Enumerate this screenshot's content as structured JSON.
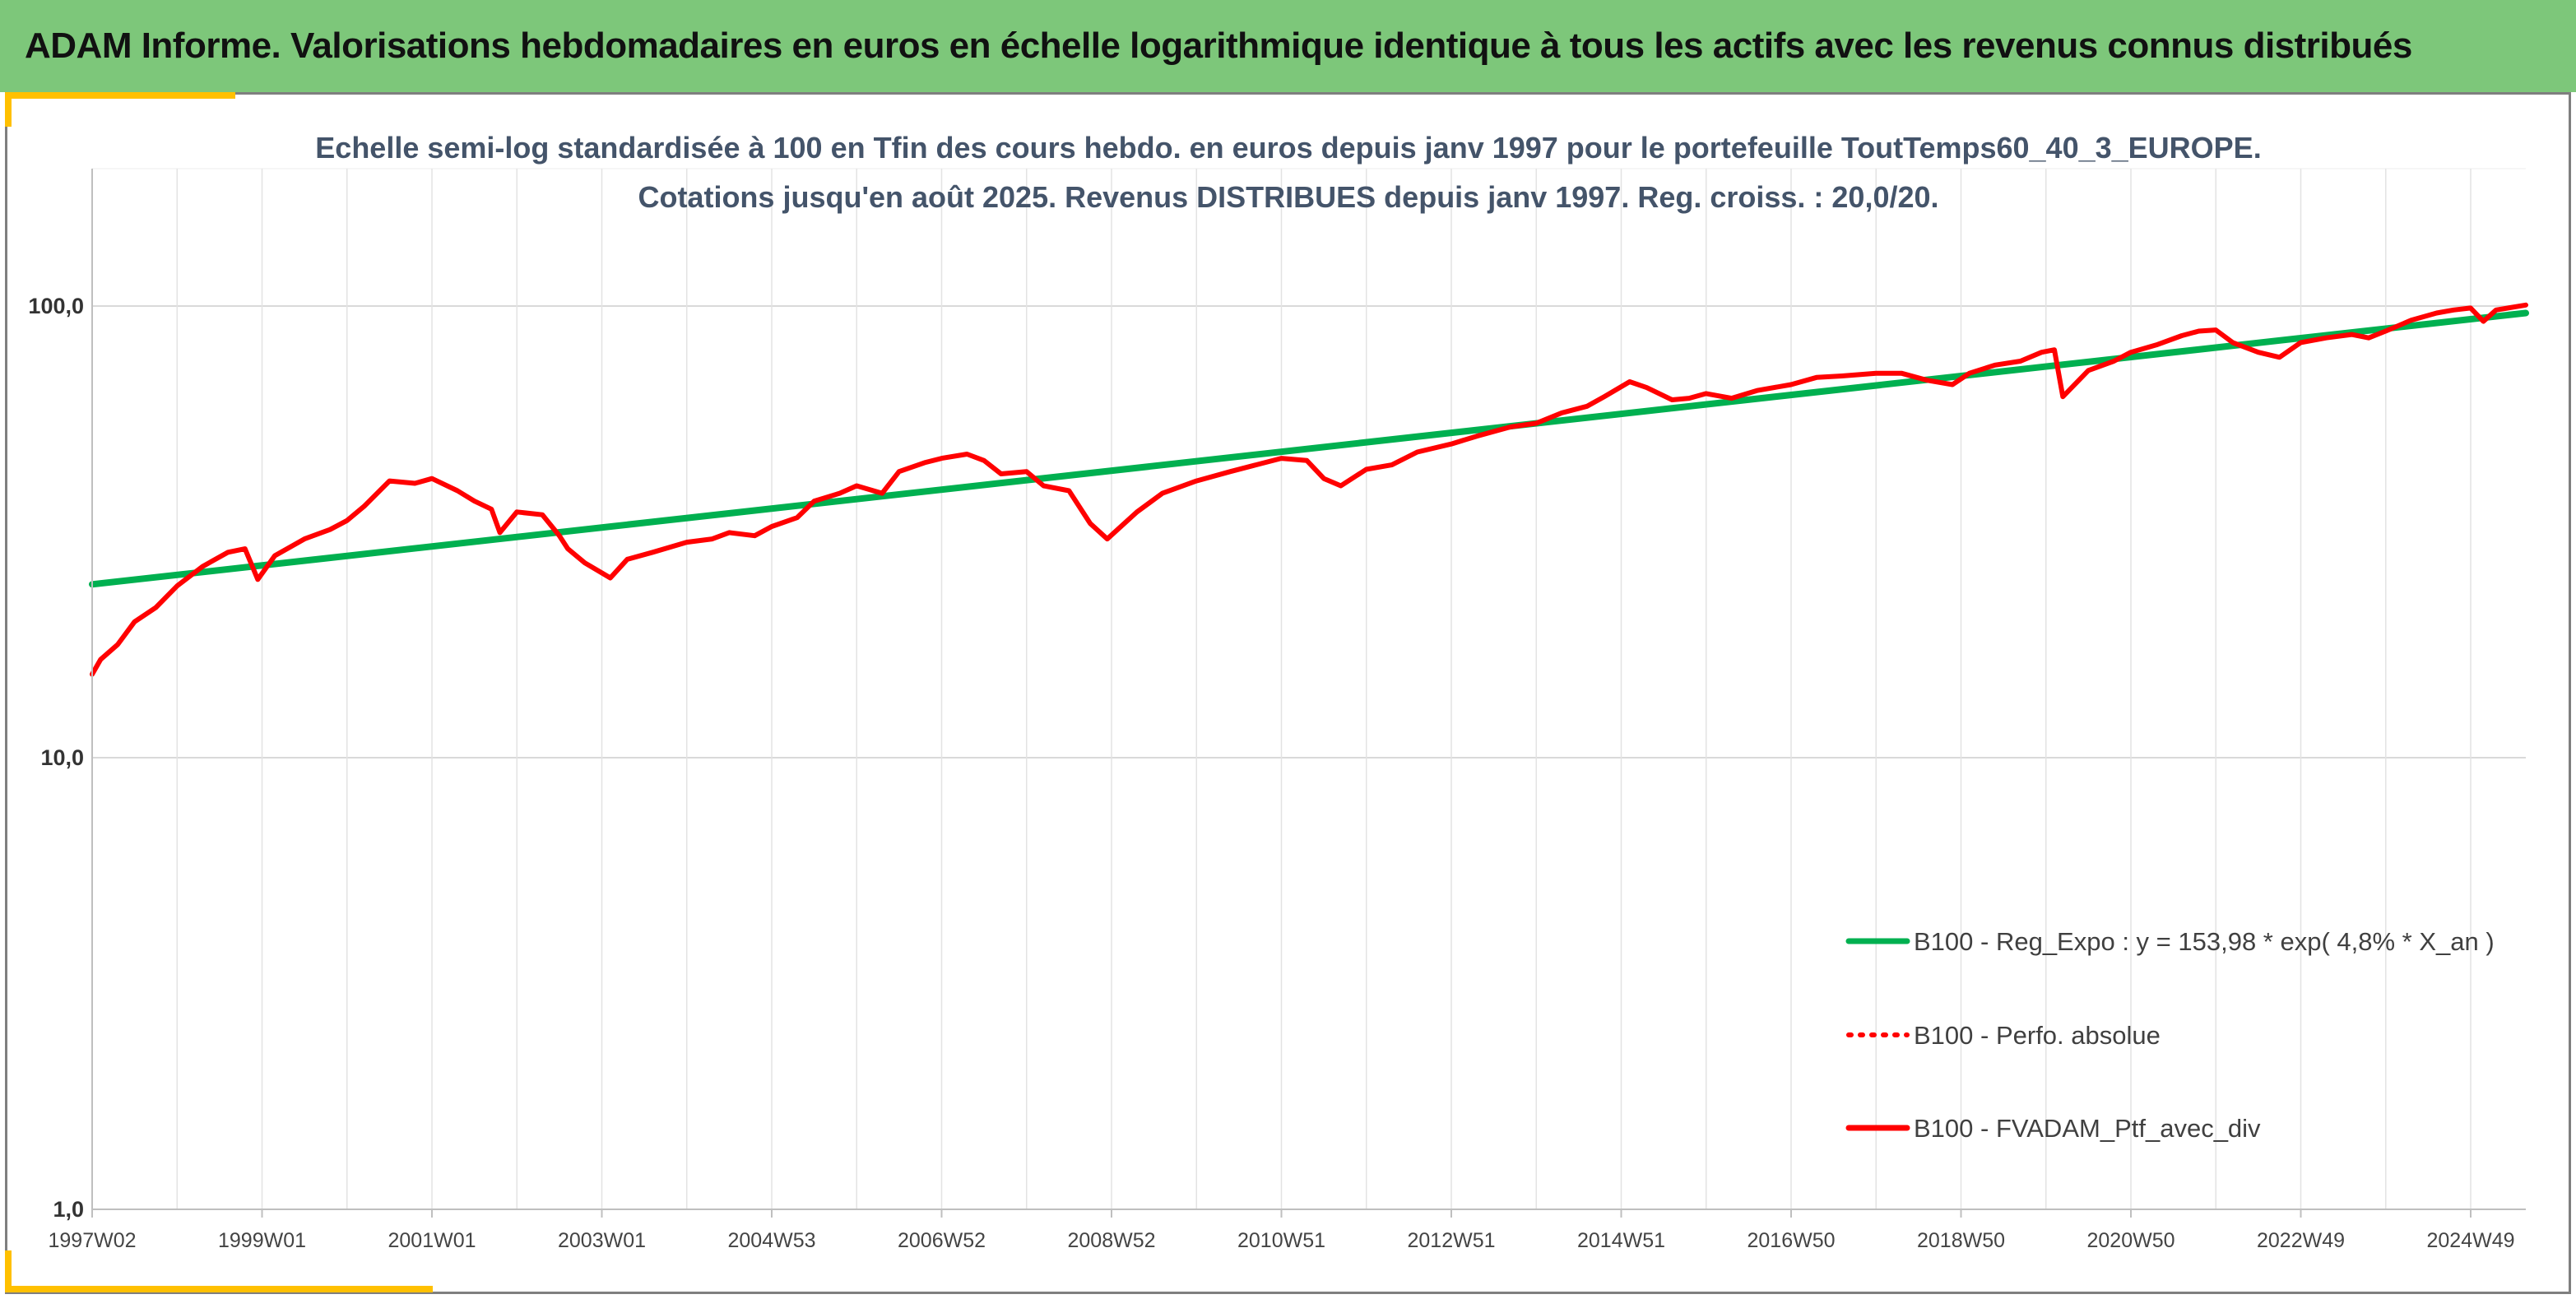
{
  "banner": {
    "title": "ADAM Informe. Valorisations hebdomadaires en euros en échelle logarithmique identique à tous les actifs avec les revenus connus distribués"
  },
  "colors": {
    "banner_bg": "#7dc77a",
    "accent_corner": "#ffc000",
    "regression_line": "#00b050",
    "portfolio_line": "#ff0000",
    "title_text": "#44546a"
  },
  "chart_data": {
    "type": "line",
    "title": [
      "Echelle semi-log standardisée à 100 en Tfin des cours hebdo. en euros depuis janv 1997 pour le portefeuille ToutTemps60_40_3_EUROPE.",
      "Cotations jusqu'en août 2025. Revenus DISTRIBUES depuis janv 1997. Reg. croiss. : 20,0/20."
    ],
    "y_scale": "log",
    "ylim": [
      1,
      200
    ],
    "y_ticks": [
      "100,0",
      "10,0",
      "1,0"
    ],
    "x_ticks": [
      "1997W02",
      "1999W01",
      "2001W01",
      "2003W01",
      "2004W53",
      "2006W52",
      "2008W52",
      "2010W51",
      "2012W51",
      "2014W51",
      "2016W50",
      "2018W50",
      "2020W50",
      "2022W49",
      "2024W49"
    ],
    "xlim": [
      1997.0,
      2025.65
    ],
    "grid": "vertical-and-horizontal",
    "legend_position": "bottom-right",
    "legend": [
      "B100 - Reg_Expo : y = 153,98 * exp( 4,8% *  X_an )",
      "B100 - Perfo. absolue",
      "B100 - FVADAM_Ptf_avec_div"
    ],
    "series": [
      {
        "name": "B100 - Reg_Expo : y = 153,98 * exp( 4,8% *  X_an )",
        "style": "solid",
        "color": "#00b050",
        "x": [
          1997.0,
          2025.65
        ],
        "values": [
          24.2,
          96.5
        ]
      },
      {
        "name": "B100 - Perfo. absolue",
        "style": "dotted",
        "color": "#ff0000",
        "x": [],
        "values": []
      },
      {
        "name": "B100 - FVADAM_Ptf_avec_div",
        "style": "solid",
        "color": "#ff0000",
        "x": [
          1997.0,
          1997.1,
          1997.3,
          1997.5,
          1997.75,
          1998.0,
          1998.3,
          1998.6,
          1998.8,
          1998.95,
          1999.15,
          1999.5,
          1999.8,
          2000.0,
          2000.2,
          2000.5,
          2000.8,
          2001.0,
          2001.3,
          2001.5,
          2001.7,
          2001.8,
          2002.0,
          2002.3,
          2002.5,
          2002.6,
          2002.8,
          2003.1,
          2003.3,
          2003.6,
          2004.0,
          2004.3,
          2004.5,
          2004.8,
          2005.0,
          2005.3,
          2005.5,
          2005.8,
          2006.0,
          2006.3,
          2006.5,
          2006.8,
          2007.0,
          2007.3,
          2007.5,
          2007.7,
          2008.0,
          2008.2,
          2008.5,
          2008.75,
          2008.95,
          2009.3,
          2009.6,
          2010.0,
          2010.4,
          2010.7,
          2011.0,
          2011.3,
          2011.5,
          2011.7,
          2012.0,
          2012.3,
          2012.6,
          2013.0,
          2013.3,
          2013.7,
          2014.0,
          2014.3,
          2014.6,
          2014.8,
          2015.1,
          2015.3,
          2015.6,
          2015.8,
          2016.0,
          2016.3,
          2016.6,
          2017.0,
          2017.3,
          2017.6,
          2018.0,
          2018.3,
          2018.6,
          2018.9,
          2019.1,
          2019.4,
          2019.7,
          2019.95,
          2020.1,
          2020.2,
          2020.5,
          2020.8,
          2021.0,
          2021.3,
          2021.6,
          2021.8,
          2022.0,
          2022.2,
          2022.5,
          2022.75,
          2023.0,
          2023.3,
          2023.6,
          2023.8,
          2024.0,
          2024.3,
          2024.6,
          2024.8,
          2025.0,
          2025.15,
          2025.3,
          2025.65
        ],
        "values": [
          15.3,
          16.5,
          17.8,
          20.0,
          21.5,
          24.0,
          26.5,
          28.5,
          29.0,
          24.8,
          28.0,
          30.5,
          32.0,
          33.5,
          36.0,
          41.0,
          40.5,
          41.5,
          39.0,
          37.0,
          35.5,
          31.5,
          35.0,
          34.5,
          31.0,
          29.0,
          27.0,
          25.0,
          27.5,
          28.5,
          30.0,
          30.5,
          31.5,
          31.0,
          32.5,
          34.0,
          37.0,
          38.5,
          40.0,
          38.5,
          43.0,
          45.0,
          46.0,
          47.0,
          45.5,
          42.5,
          43.0,
          40.0,
          39.0,
          33.0,
          30.5,
          35.0,
          38.5,
          41.0,
          43.0,
          44.5,
          46.0,
          45.5,
          41.5,
          40.0,
          43.5,
          44.5,
          47.5,
          49.5,
          51.5,
          54.0,
          55.0,
          58.0,
          60.0,
          63.0,
          68.0,
          66.0,
          62.0,
          62.5,
          64.0,
          62.5,
          65.0,
          67.0,
          69.5,
          70.0,
          71.0,
          71.0,
          68.5,
          67.0,
          71.0,
          74.0,
          75.5,
          79.0,
          80.0,
          63.0,
          72.0,
          75.5,
          79.0,
          82.0,
          86.0,
          88.0,
          88.5,
          83.0,
          79.0,
          77.0,
          83.0,
          85.0,
          86.5,
          85.0,
          88.0,
          93.0,
          96.5,
          98.0,
          99.0,
          92.5,
          98.0,
          100.5
        ]
      }
    ]
  }
}
